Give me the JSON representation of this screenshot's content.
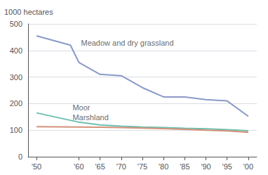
{
  "chart_data": {
    "type": "line",
    "ylabel": "1000 hectares",
    "xlim": [
      1948,
      2002
    ],
    "xticks": [
      {
        "value": 1950,
        "label": "'50"
      },
      {
        "value": 1960,
        "label": "'60"
      },
      {
        "value": 1965,
        "label": "'65"
      },
      {
        "value": 1970,
        "label": "'70"
      },
      {
        "value": 1975,
        "label": "'75"
      },
      {
        "value": 1980,
        "label": "'80"
      },
      {
        "value": 1985,
        "label": "'85"
      },
      {
        "value": 1990,
        "label": "'90"
      },
      {
        "value": 1995,
        "label": "'95"
      },
      {
        "value": 2000,
        "label": "'00"
      }
    ],
    "ylim": [
      0,
      500
    ],
    "yticks": [
      0,
      100,
      200,
      300,
      400,
      500
    ],
    "grid": true,
    "series": [
      {
        "name": "Meadow and dry grassland",
        "color": "#8a99c8",
        "x": [
          1950,
          1958,
          1960,
          1965,
          1970,
          1975,
          1980,
          1985,
          1990,
          1995,
          2000
        ],
        "values": [
          455,
          420,
          355,
          310,
          305,
          260,
          225,
          225,
          215,
          210,
          152
        ]
      },
      {
        "name": "Moor",
        "color": "#6dbfb0",
        "x": [
          1950,
          1960,
          1965,
          1970,
          1975,
          1980,
          1985,
          1990,
          1995,
          2000
        ],
        "values": [
          165,
          130,
          120,
          115,
          112,
          110,
          107,
          105,
          102,
          98
        ]
      },
      {
        "name": "Marshland",
        "color": "#d4917a",
        "x": [
          1950,
          1960,
          1965,
          1970,
          1975,
          1980,
          1985,
          1990,
          1995,
          2000
        ],
        "values": [
          113,
          112,
          111,
          110,
          108,
          106,
          103,
          100,
          97,
          92
        ]
      }
    ],
    "annotations": [
      {
        "text": "Meadow and dry grassland",
        "x": 1960.5,
        "y": 415
      },
      {
        "text": "Moor",
        "x": 1958.5,
        "y": 170
      },
      {
        "text": "Marshland",
        "x": 1958.5,
        "y": 134
      }
    ]
  }
}
